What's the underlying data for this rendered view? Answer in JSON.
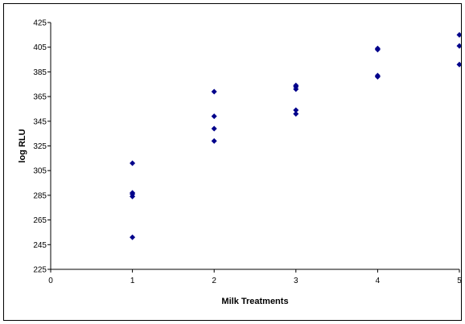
{
  "chart_data": {
    "type": "scatter",
    "title": "",
    "xlabel": "Milk Treatments",
    "ylabel": "log RLU",
    "xlim": [
      0,
      5
    ],
    "ylim": [
      225,
      425
    ],
    "x_ticks": [
      0,
      1,
      2,
      3,
      4,
      5
    ],
    "y_ticks": [
      225,
      245,
      265,
      285,
      305,
      325,
      345,
      365,
      385,
      405,
      425
    ],
    "grid": false,
    "legend": "none",
    "marker": "diamond",
    "marker_color": "#00008B",
    "series": [
      {
        "x": [
          1,
          1,
          1,
          1,
          1,
          2,
          2,
          2,
          2,
          3,
          3,
          3,
          3,
          3,
          4,
          4,
          4,
          4,
          5,
          5,
          5
        ],
        "values": [
          251,
          284,
          286,
          287,
          311,
          329,
          339,
          349,
          369,
          351,
          354,
          371,
          373,
          374,
          381,
          382,
          403,
          404,
          391,
          406,
          415
        ]
      }
    ]
  }
}
